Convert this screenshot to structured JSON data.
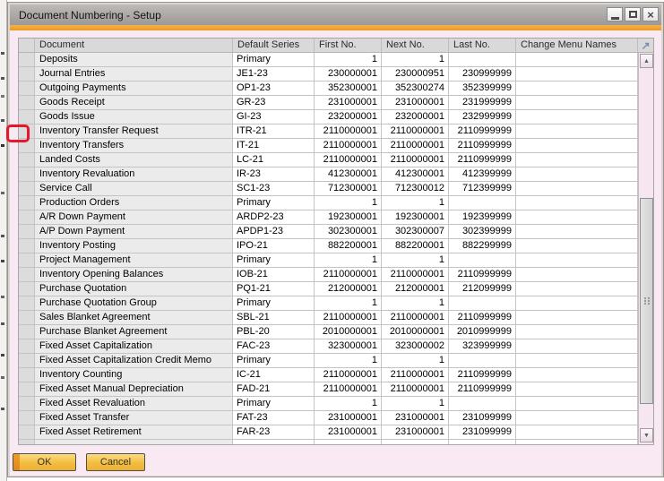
{
  "window": {
    "title": "Document Numbering - Setup"
  },
  "icons": {
    "close": "×",
    "expand": "↗",
    "scroll_up": "▲",
    "scroll_down": "▼"
  },
  "colors": {
    "accent_orange": "#efa232",
    "highlight_red": "#e6172c",
    "body_pink": "#f8e9f2",
    "button_gold": "#f3bd42"
  },
  "table": {
    "columns": [
      "Document",
      "Default Series",
      "First No.",
      "Next No.",
      "Last No.",
      "Change Menu Names"
    ],
    "highlighted_row": "Inventory Transfer Request",
    "rows": [
      {
        "document": "Deposits",
        "series": "Primary",
        "first": "1",
        "next": "1",
        "last": ""
      },
      {
        "document": "Journal Entries",
        "series": "JE1-23",
        "first": "230000001",
        "next": "230000951",
        "last": "230999999"
      },
      {
        "document": "Outgoing Payments",
        "series": "OP1-23",
        "first": "352300001",
        "next": "352300274",
        "last": "352399999"
      },
      {
        "document": "Goods Receipt",
        "series": "GR-23",
        "first": "231000001",
        "next": "231000001",
        "last": "231999999"
      },
      {
        "document": "Goods Issue",
        "series": "GI-23",
        "first": "232000001",
        "next": "232000001",
        "last": "232999999"
      },
      {
        "document": "Inventory Transfer Request",
        "series": "ITR-21",
        "first": "2110000001",
        "next": "2110000001",
        "last": "2110999999"
      },
      {
        "document": "Inventory Transfers",
        "series": "IT-21",
        "first": "2110000001",
        "next": "2110000001",
        "last": "2110999999"
      },
      {
        "document": "Landed Costs",
        "series": "LC-21",
        "first": "2110000001",
        "next": "2110000001",
        "last": "2110999999"
      },
      {
        "document": "Inventory Revaluation",
        "series": "IR-23",
        "first": "412300001",
        "next": "412300001",
        "last": "412399999"
      },
      {
        "document": "Service Call",
        "series": "SC1-23",
        "first": "712300001",
        "next": "712300012",
        "last": "712399999"
      },
      {
        "document": "Production Orders",
        "series": "Primary",
        "first": "1",
        "next": "1",
        "last": ""
      },
      {
        "document": "A/R Down Payment",
        "series": "ARDP2-23",
        "first": "192300001",
        "next": "192300001",
        "last": "192399999"
      },
      {
        "document": "A/P Down Payment",
        "series": "APDP1-23",
        "first": "302300001",
        "next": "302300007",
        "last": "302399999"
      },
      {
        "document": "Inventory Posting",
        "series": "IPO-21",
        "first": "882200001",
        "next": "882200001",
        "last": "882299999"
      },
      {
        "document": "Project Management",
        "series": "Primary",
        "first": "1",
        "next": "1",
        "last": ""
      },
      {
        "document": "Inventory Opening Balances",
        "series": "IOB-21",
        "first": "2110000001",
        "next": "2110000001",
        "last": "2110999999"
      },
      {
        "document": "Purchase Quotation",
        "series": "PQ1-21",
        "first": "212000001",
        "next": "212000001",
        "last": "212099999"
      },
      {
        "document": "Purchase Quotation Group",
        "series": "Primary",
        "first": "1",
        "next": "1",
        "last": ""
      },
      {
        "document": "Sales Blanket Agreement",
        "series": "SBL-21",
        "first": "2110000001",
        "next": "2110000001",
        "last": "2110999999"
      },
      {
        "document": "Purchase Blanket Agreement",
        "series": "PBL-20",
        "first": "2010000001",
        "next": "2010000001",
        "last": "2010999999"
      },
      {
        "document": "Fixed Asset Capitalization",
        "series": "FAC-23",
        "first": "323000001",
        "next": "323000002",
        "last": "323999999"
      },
      {
        "document": "Fixed Asset Capitalization Credit Memo",
        "series": "Primary",
        "first": "1",
        "next": "1",
        "last": ""
      },
      {
        "document": "Inventory Counting",
        "series": "IC-21",
        "first": "2110000001",
        "next": "2110000001",
        "last": "2110999999"
      },
      {
        "document": "Fixed Asset Manual Depreciation",
        "series": "FAD-21",
        "first": "2110000001",
        "next": "2110000001",
        "last": "2110999999"
      },
      {
        "document": "Fixed Asset Revaluation",
        "series": "Primary",
        "first": "1",
        "next": "1",
        "last": ""
      },
      {
        "document": "Fixed Asset Transfer",
        "series": "FAT-23",
        "first": "231000001",
        "next": "231000001",
        "last": "231099999"
      },
      {
        "document": "Fixed Asset Retirement",
        "series": "FAR-23",
        "first": "231000001",
        "next": "231000001",
        "last": "231099999"
      }
    ]
  },
  "footer": {
    "ok_label": "OK",
    "cancel_label": "Cancel"
  }
}
